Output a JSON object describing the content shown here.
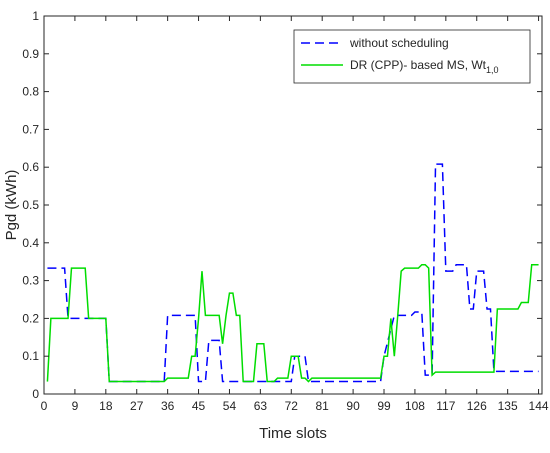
{
  "chart_data": {
    "type": "line",
    "title": "",
    "xlabel": "Time slots",
    "ylabel": "Pgd (kWh)",
    "xlim": [
      0,
      145
    ],
    "ylim": [
      0,
      1
    ],
    "xticks": [
      "0",
      "9",
      "18",
      "27",
      "36",
      "45",
      "54",
      "63",
      "72",
      "81",
      "90",
      "99",
      "108",
      "117",
      "126",
      "135",
      "144"
    ],
    "xtick_values": [
      0,
      9,
      18,
      27,
      36,
      45,
      54,
      63,
      72,
      81,
      90,
      99,
      108,
      117,
      126,
      135,
      144
    ],
    "yticks": [
      "0",
      "0.1",
      "0.2",
      "0.3",
      "0.4",
      "0.5",
      "0.6",
      "0.7",
      "0.8",
      "0.9",
      "1"
    ],
    "ytick_values": [
      0,
      0.1,
      0.2,
      0.3,
      0.4,
      0.5,
      0.6,
      0.7,
      0.8,
      0.9,
      1
    ],
    "grid": false,
    "legend_position": "top-right",
    "series": [
      {
        "name": "without scheduling",
        "color": "#0000ff",
        "style": "dashed",
        "x": [
          1,
          6,
          7,
          17,
          18,
          19,
          35,
          36,
          44,
          45,
          47,
          48,
          51,
          52,
          60,
          61,
          72,
          73,
          76,
          77,
          98,
          99,
          102,
          103,
          107,
          108,
          110,
          111,
          113,
          114,
          116,
          117,
          119,
          120,
          123,
          124,
          125,
          126,
          128,
          129,
          130,
          131,
          132,
          133,
          144
        ],
        "y": [
          0.333,
          0.333,
          0.2,
          0.2,
          0.2,
          0.033,
          0.033,
          0.208,
          0.208,
          0.033,
          0.033,
          0.142,
          0.142,
          0.033,
          0.033,
          0.033,
          0.033,
          0.1,
          0.1,
          0.033,
          0.033,
          0.1,
          0.208,
          0.208,
          0.208,
          0.217,
          0.217,
          0.05,
          0.05,
          0.608,
          0.608,
          0.325,
          0.325,
          0.342,
          0.342,
          0.225,
          0.225,
          0.325,
          0.325,
          0.225,
          0.225,
          0.06,
          0.06,
          0.06,
          0.06
        ]
      },
      {
        "name": "DR (CPP)- based MS, Wt1,0",
        "color": "#00dd00",
        "style": "solid",
        "x": [
          1,
          2,
          7,
          8,
          12,
          13,
          18,
          19,
          35,
          36,
          42,
          43,
          44,
          45,
          46,
          47,
          51,
          52,
          53,
          54,
          55,
          56,
          57,
          58,
          61,
          62,
          64,
          65,
          67,
          68,
          71,
          72,
          74,
          75,
          76,
          77,
          78,
          79,
          98,
          99,
          100,
          101,
          102,
          103,
          104,
          105,
          109,
          110,
          111,
          112,
          113,
          114,
          130,
          131,
          132,
          133,
          138,
          139,
          140,
          141,
          142,
          143,
          144
        ],
        "y": [
          0.033,
          0.2,
          0.2,
          0.333,
          0.333,
          0.2,
          0.2,
          0.033,
          0.033,
          0.042,
          0.042,
          0.1,
          0.1,
          0.2,
          0.325,
          0.208,
          0.208,
          0.133,
          0.208,
          0.267,
          0.267,
          0.208,
          0.208,
          0.033,
          0.033,
          0.133,
          0.133,
          0.033,
          0.033,
          0.042,
          0.042,
          0.1,
          0.1,
          0.042,
          0.042,
          0.033,
          0.042,
          0.042,
          0.042,
          0.1,
          0.1,
          0.2,
          0.1,
          0.208,
          0.325,
          0.333,
          0.333,
          0.342,
          0.342,
          0.333,
          0.05,
          0.058,
          0.058,
          0.058,
          0.225,
          0.225,
          0.225,
          0.242,
          0.242,
          0.242,
          0.342,
          0.342,
          0.342
        ]
      }
    ],
    "legend": {
      "entries": [
        {
          "text": "without scheduling"
        },
        {
          "text_main": "DR (CPP)- based MS, Wt",
          "text_sub": "1,0"
        }
      ]
    }
  }
}
